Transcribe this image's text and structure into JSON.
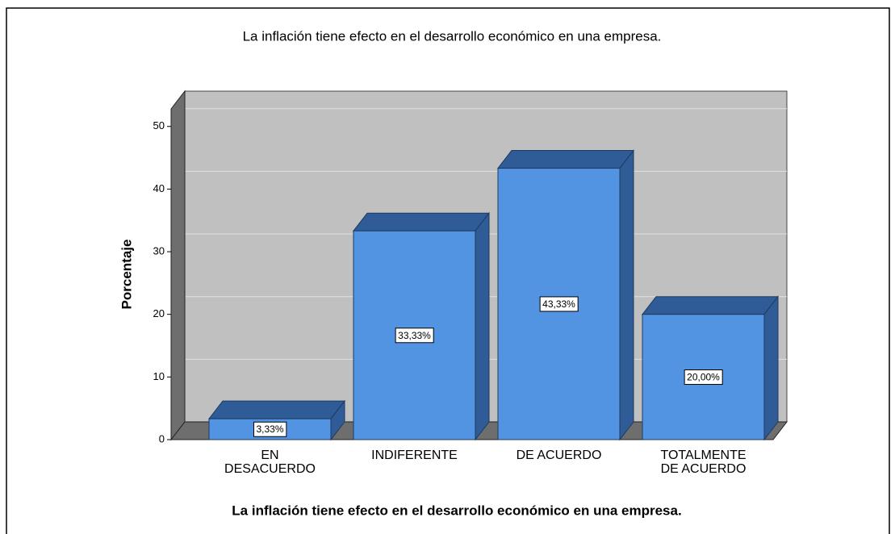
{
  "chart_data": {
    "type": "bar3d",
    "title": "La inflación tiene efecto en el desarrollo económico en una empresa.",
    "xlabel": "La inflación tiene efecto en el desarrollo económico en una empresa.",
    "ylabel": "Porcentaje",
    "categories": [
      "EN\nDESACUERDO",
      "INDIFERENTE",
      "DE ACUERDO",
      "TOTALMENTE\nDE ACUERDO"
    ],
    "values": [
      3.33,
      33.33,
      43.33,
      20.0
    ],
    "value_labels": [
      "3,33%",
      "33,33%",
      "43,33%",
      "20,00%"
    ],
    "color": "#5294e2",
    "ylim": [
      0,
      52.8
    ],
    "yticks": [
      0,
      10,
      20,
      30,
      40,
      50
    ],
    "grid": true
  }
}
